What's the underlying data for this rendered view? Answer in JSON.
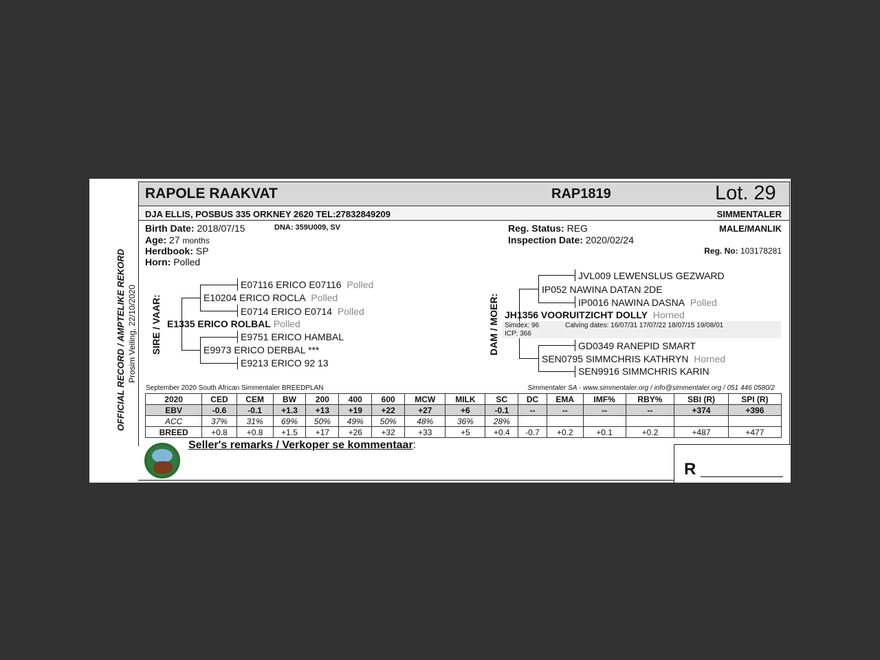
{
  "animal": {
    "name": "RAPOLE RAAKVAT",
    "code": "RAP1819",
    "lot": "Lot. 29",
    "owner": "DJA ELLIS, POSBUS 335 ORKNEY 2620 TEL:27832849209",
    "breed": "SIMMENTALER",
    "sex": "MALE/MANLIK",
    "birth_label": "Birth Date:",
    "birth": "2018/07/15",
    "dna": "DNA: 359U009, SV",
    "age_label": "Age:",
    "age": "27",
    "age_unit": "months",
    "herd_label": "Herdbook:",
    "herd": "SP",
    "horn_label": "Horn:",
    "horn": "Polled",
    "reg_status_label": "Reg. Status:",
    "reg_status": "REG",
    "insp_label": "Inspection Date:",
    "insp": "2020/02/24",
    "regno_label": "Reg. No:",
    "regno": "103178281"
  },
  "side": {
    "official": "OFFICIAL RECORD / AMPTELIKE REKORD",
    "sale": "Prosim Veiling, 22/10/2020"
  },
  "sire": {
    "label": "SIRE / VAAR:",
    "name": "E1335 ERICO ROLBAL",
    "horn": "Polled",
    "ss": "E10204 ERICO ROCLA",
    "ss_horn": "Polled",
    "sss": "E07116 ERICO E07116",
    "sss_horn": "Polled",
    "ssd": "E0714 ERICO E0714",
    "ssd_horn": "Polled",
    "sd": "E9973 ERICO DERBAL ***",
    "sds": "E9751 ERICO HAMBAL",
    "sdd": "E9213 ERICO 92 13"
  },
  "dam": {
    "label": "DAM / MOER:",
    "name": "JH1356 VOORUITZICHT DOLLY",
    "horn": "Horned",
    "simdex": "Simdex: 96",
    "icp": "ICP: 366",
    "calving": "Calving dates: 16/07/31  17/07/22  18/07/15  19/08/01",
    "ds": "IP052 NAWINA DATAN 2DE",
    "dss": "JVL009 LEWENSLUS GEZWARD",
    "dsd": "IP0016 NAWINA DASNA",
    "dsd_horn": "Polled",
    "dd": "SEN0795 SIMMCHRIS KATHRYN",
    "dd_horn": "Horned",
    "dds": "GD0349 RANEPID SMART",
    "ddd": "SEN9916 SIMMCHRIS KARIN"
  },
  "breedplan": {
    "title": "September 2020 South African Simmentaler BREEDPLAN",
    "contact": "Simmentaler SA - www.simmentaler.org / info@simmentaler.org / 051 446 0580/2",
    "header": [
      "2020",
      "CED",
      "CEM",
      "BW",
      "200",
      "400",
      "600",
      "MCW",
      "MILK",
      "SC",
      "DC",
      "EMA",
      "IMF%",
      "RBY%",
      "SBI (R)",
      "SPI (R)"
    ],
    "ebv": [
      "EBV",
      "-0.6",
      "-0.1",
      "+1.3",
      "+13",
      "+19",
      "+22",
      "+27",
      "+6",
      "-0.1",
      "--",
      "--",
      "--",
      "--",
      "+374",
      "+396"
    ],
    "acc": [
      "ACC",
      "37%",
      "31%",
      "69%",
      "50%",
      "49%",
      "50%",
      "48%",
      "36%",
      "28%",
      "",
      "",
      "",
      "",
      "",
      ""
    ],
    "breed": [
      "BREED",
      "+0.8",
      "+0.8",
      "+1.5",
      "+17",
      "+26",
      "+32",
      "+33",
      "+5",
      "+0.4",
      "-0.7",
      "+0.2",
      "+0.1",
      "+0.2",
      "+487",
      "+477"
    ]
  },
  "remarks": {
    "label": "Seller's remarks / Verkoper se kommentaar",
    "colon": ":",
    "price_prefix": "R"
  }
}
